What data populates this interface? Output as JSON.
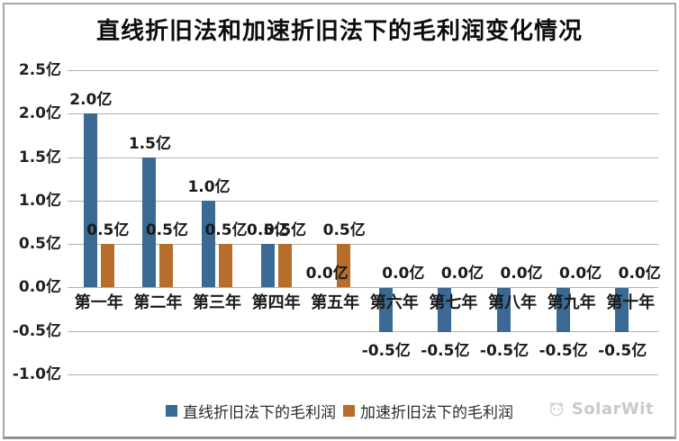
{
  "title": "直线折旧法和加速折旧法下的毛利润变化情况",
  "watermark": {
    "text": "SolarWit",
    "logo": "panda-logo-icon"
  },
  "colors": {
    "straight_line_series": "#3a6a94",
    "accelerated_series": "#b76d2b",
    "gridline": "#b2b2b2",
    "text": "#1a1a1a",
    "watermark": "#c9c9c9",
    "frame_border": "#a8a8a8"
  },
  "chart_data": {
    "type": "bar",
    "title": "直线折旧法和加速折旧法下的毛利润变化情况",
    "unit": "亿",
    "categories": [
      "第一年",
      "第二年",
      "第三年",
      "第四年",
      "第五年",
      "第六年",
      "第七年",
      "第八年",
      "第九年",
      "第十年"
    ],
    "series": [
      {
        "name": "直线折旧法下的毛利润",
        "color": "#3a6a94",
        "values": [
          2.0,
          1.5,
          1.0,
          0.5,
          0.0,
          -0.5,
          -0.5,
          -0.5,
          -0.5,
          -0.5
        ],
        "data_labels": [
          "2.0亿",
          "1.5亿",
          "1.0亿",
          "0.5亿",
          "0.0亿",
          "-0.5亿",
          "-0.5亿",
          "-0.5亿",
          "-0.5亿",
          "-0.5亿"
        ]
      },
      {
        "name": "加速折旧法下的毛利润",
        "color": "#b76d2b",
        "values": [
          0.5,
          0.5,
          0.5,
          0.5,
          0.5,
          0.0,
          0.0,
          0.0,
          0.0,
          0.0
        ],
        "data_labels": [
          "0.5亿",
          "0.5亿",
          "0.5亿",
          "0.5亿",
          "0.5亿",
          "0.0亿",
          "0.0亿",
          "0.0亿",
          "0.0亿",
          "0.0亿"
        ]
      }
    ],
    "ylim": [
      -1.0,
      2.5
    ],
    "y_ticks": [
      {
        "value": 2.5,
        "label": "2.5亿"
      },
      {
        "value": 2.0,
        "label": "2.0亿"
      },
      {
        "value": 1.5,
        "label": "1.5亿"
      },
      {
        "value": 1.0,
        "label": "1.0亿"
      },
      {
        "value": 0.5,
        "label": "0.5亿"
      },
      {
        "value": 0.0,
        "label": "0.0亿"
      },
      {
        "value": -0.5,
        "label": "-0.5亿"
      },
      {
        "value": -1.0,
        "label": "-1.0亿"
      }
    ],
    "grid": true,
    "legend_position": "bottom"
  }
}
